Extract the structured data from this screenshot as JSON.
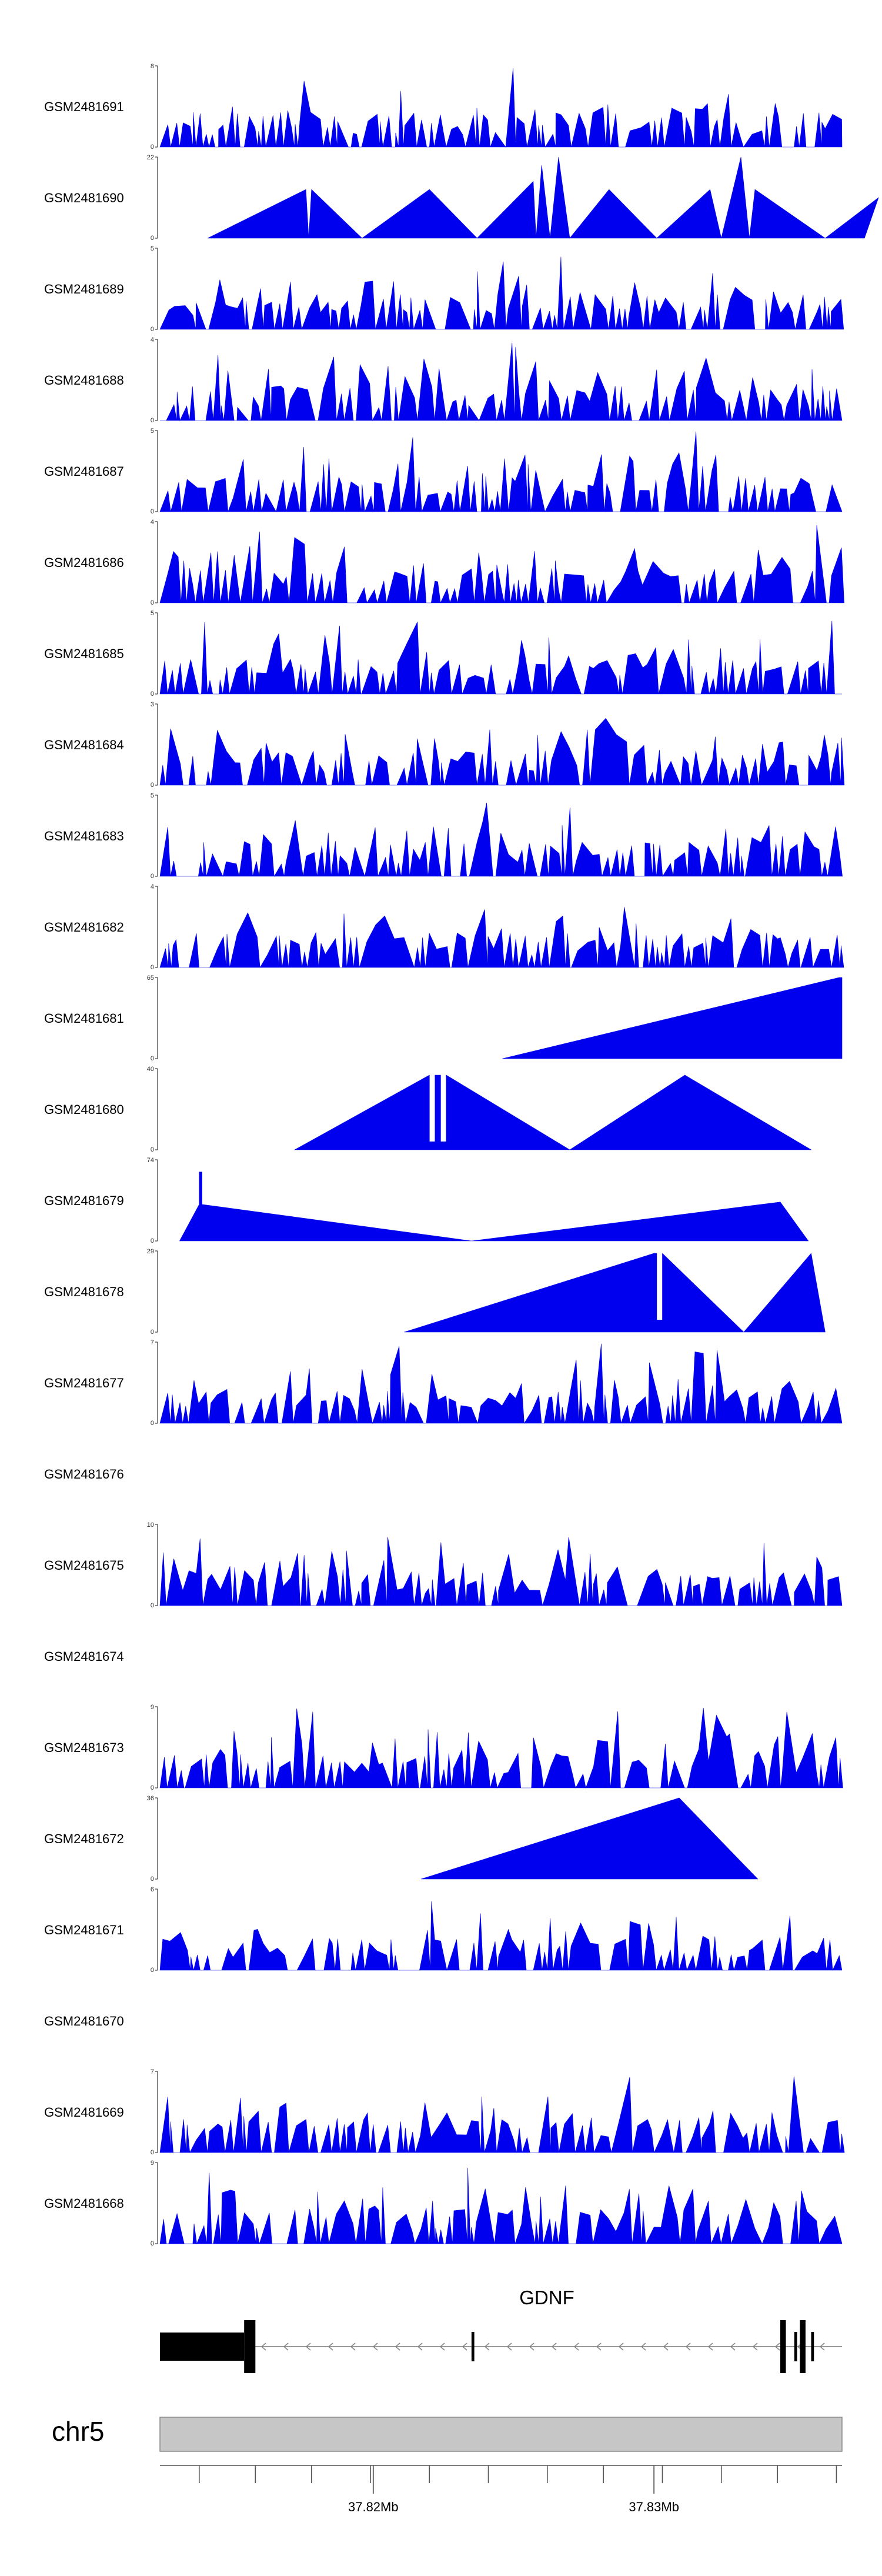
{
  "chart_data": {
    "type": "area",
    "title": "",
    "xlabel": "",
    "ylabel": "",
    "xlim": [
      37.8124,
      37.8367
    ],
    "colors": {
      "track_fill": "#0000ee",
      "gene_model": "#000000",
      "ideogram": "#c6c6c6",
      "axis": "#555555"
    },
    "tracks": [
      {
        "name": "GSM2481691",
        "ymax": "8"
      },
      {
        "name": "GSM2481690",
        "ymax": "22"
      },
      {
        "name": "GSM2481689",
        "ymax": "5"
      },
      {
        "name": "GSM2481688",
        "ymax": "4"
      },
      {
        "name": "GSM2481687",
        "ymax": "5"
      },
      {
        "name": "GSM2481686",
        "ymax": "4"
      },
      {
        "name": "GSM2481685",
        "ymax": "5"
      },
      {
        "name": "GSM2481684",
        "ymax": "3"
      },
      {
        "name": "GSM2481683",
        "ymax": "5"
      },
      {
        "name": "GSM2481682",
        "ymax": "4"
      },
      {
        "name": "GSM2481681",
        "ymax": "65"
      },
      {
        "name": "GSM2481680",
        "ymax": "40"
      },
      {
        "name": "GSM2481679",
        "ymax": "74"
      },
      {
        "name": "GSM2481678",
        "ymax": "29"
      },
      {
        "name": "GSM2481677",
        "ymax": "7"
      },
      {
        "name": "GSM2481676",
        "ymax": ""
      },
      {
        "name": "GSM2481675",
        "ymax": "10"
      },
      {
        "name": "GSM2481674",
        "ymax": ""
      },
      {
        "name": "GSM2481673",
        "ymax": "9"
      },
      {
        "name": "GSM2481672",
        "ymax": "36"
      },
      {
        "name": "GSM2481671",
        "ymax": "6"
      },
      {
        "name": "GSM2481670",
        "ymax": ""
      },
      {
        "name": "GSM2481669",
        "ymax": "7"
      },
      {
        "name": "GSM2481668",
        "ymax": "9"
      }
    ],
    "shape_tracks": {
      "GSM2481690": [
        [
          37.8141,
          0
        ],
        [
          37.8176,
          0.6
        ],
        [
          37.8177,
          0
        ],
        [
          37.8178,
          0.6
        ],
        [
          37.8196,
          0
        ],
        [
          37.822,
          0.6
        ],
        [
          37.8237,
          0
        ],
        [
          37.8257,
          0.7
        ],
        [
          37.8258,
          0
        ],
        [
          37.826,
          0.9
        ],
        [
          37.8263,
          0
        ],
        [
          37.8266,
          1.0
        ],
        [
          37.827,
          0
        ],
        [
          37.8284,
          0.6
        ],
        [
          37.8301,
          0
        ],
        [
          37.832,
          0.6
        ],
        [
          37.8324,
          0
        ],
        [
          37.8331,
          1.0
        ],
        [
          37.8334,
          0
        ],
        [
          37.8336,
          0.6
        ],
        [
          37.8361,
          0
        ],
        [
          37.838,
          0.5
        ],
        [
          37.8375,
          0
        ]
      ],
      "GSM2481681": [
        [
          37.8246,
          0
        ],
        [
          37.8366,
          1.0
        ],
        [
          37.8367,
          1.0
        ],
        [
          37.8367,
          0
        ]
      ],
      "GSM2481680": [
        [
          37.8172,
          0
        ],
        [
          37.822,
          0.92
        ],
        [
          37.822,
          0.1
        ],
        [
          37.8222,
          0.1
        ],
        [
          37.8222,
          0.92
        ],
        [
          37.8224,
          0.92
        ],
        [
          37.8224,
          0.1
        ],
        [
          37.8226,
          0.1
        ],
        [
          37.8226,
          0.92
        ],
        [
          37.827,
          0
        ],
        [
          37.8311,
          0.92
        ],
        [
          37.8356,
          0
        ]
      ],
      "GSM2481679": [
        [
          37.8131,
          0
        ],
        [
          37.8138,
          0.45
        ],
        [
          37.8138,
          0.85
        ],
        [
          37.8139,
          0.85
        ],
        [
          37.8139,
          0.45
        ],
        [
          37.8235,
          0
        ],
        [
          37.8345,
          0.48
        ],
        [
          37.8355,
          0
        ]
      ],
      "GSM2481678": [
        [
          37.8211,
          0
        ],
        [
          37.83,
          0.97
        ],
        [
          37.8301,
          0.97
        ],
        [
          37.8301,
          0.15
        ],
        [
          37.8303,
          0.15
        ],
        [
          37.8303,
          0.97
        ],
        [
          37.8332,
          0
        ],
        [
          37.8356,
          0.97
        ],
        [
          37.8361,
          0
        ]
      ],
      "GSM2481672": [
        [
          37.8217,
          0
        ],
        [
          37.8309,
          1.0
        ],
        [
          37.8337,
          0
        ]
      ]
    },
    "gene": {
      "label": "GDNF",
      "chromosome": "chr5",
      "start": 37.8124,
      "end": 37.8367,
      "strand": "-",
      "exons": [
        [
          37.8124,
          37.8154
        ],
        [
          37.8154,
          37.8158
        ],
        [
          37.8235,
          37.8236
        ],
        [
          37.8345,
          37.8347
        ],
        [
          37.835,
          37.8351
        ],
        [
          37.8352,
          37.8354
        ],
        [
          37.8356,
          37.8357
        ]
      ],
      "thick_exons": [
        [
          37.8124,
          37.8154
        ]
      ],
      "tall_exons": [
        [
          37.8154,
          37.8158
        ],
        [
          37.8345,
          37.8347
        ],
        [
          37.8352,
          37.8354
        ]
      ]
    },
    "xaxis": {
      "ticks": [
        37.8138,
        37.8158,
        37.8178,
        37.8199,
        37.822,
        37.8241,
        37.8262,
        37.8282,
        37.8303,
        37.8324,
        37.8344,
        37.8365
      ],
      "labeled_ticks": [
        37.82,
        37.83
      ],
      "tick_labels": [
        "37.82Mb",
        "37.83Mb"
      ]
    },
    "grid": false,
    "legend": "none"
  }
}
